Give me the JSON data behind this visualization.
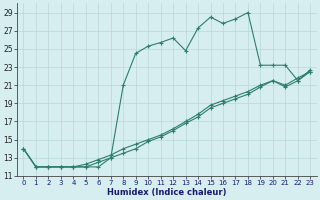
{
  "xlabel": "Humidex (Indice chaleur)",
  "bg_color": "#d6eef0",
  "grid_color": "#b8d8d8",
  "line_color": "#2e7d6e",
  "xlim": [
    -0.5,
    23.5
  ],
  "ylim": [
    11,
    30
  ],
  "yticks": [
    11,
    13,
    15,
    17,
    19,
    21,
    23,
    25,
    27,
    29
  ],
  "xticks": [
    0,
    1,
    2,
    3,
    4,
    5,
    6,
    7,
    8,
    9,
    10,
    11,
    12,
    13,
    14,
    15,
    16,
    17,
    18,
    19,
    20,
    21,
    22,
    23
  ],
  "line1_x": [
    0,
    1,
    2,
    3,
    4,
    5,
    6,
    7,
    8,
    9,
    10,
    11,
    12,
    13,
    14,
    15,
    16,
    17,
    18,
    19,
    20,
    21,
    22,
    23
  ],
  "line1_y": [
    14,
    12,
    12,
    12,
    12,
    12,
    12,
    13,
    21,
    24.5,
    25.3,
    25.7,
    26.2,
    24.8,
    27.3,
    28.5,
    27.8,
    28.3,
    29.0,
    23.2,
    23.2,
    23.2,
    21.5,
    22.7
  ],
  "line2_x": [
    0,
    1,
    2,
    3,
    4,
    5,
    6,
    7,
    8,
    9,
    10,
    11,
    12,
    13,
    14,
    15,
    16,
    17,
    18,
    19,
    20,
    21,
    22,
    23
  ],
  "line2_y": [
    14,
    12,
    12,
    12,
    12,
    12.3,
    12.8,
    13.3,
    14.0,
    14.5,
    15.0,
    15.5,
    16.2,
    17.0,
    17.8,
    18.8,
    19.3,
    19.8,
    20.3,
    21.0,
    21.5,
    21.0,
    21.8,
    22.5
  ],
  "line3_x": [
    0,
    1,
    2,
    3,
    4,
    5,
    6,
    7,
    8,
    9,
    10,
    11,
    12,
    13,
    14,
    15,
    16,
    17,
    18,
    19,
    20,
    21,
    22,
    23
  ],
  "line3_y": [
    14,
    12,
    12,
    12,
    12,
    12,
    12.5,
    13.0,
    13.5,
    14.0,
    14.8,
    15.3,
    16.0,
    16.8,
    17.5,
    18.5,
    19.0,
    19.5,
    20.0,
    20.8,
    21.5,
    20.8,
    21.5,
    22.5
  ]
}
